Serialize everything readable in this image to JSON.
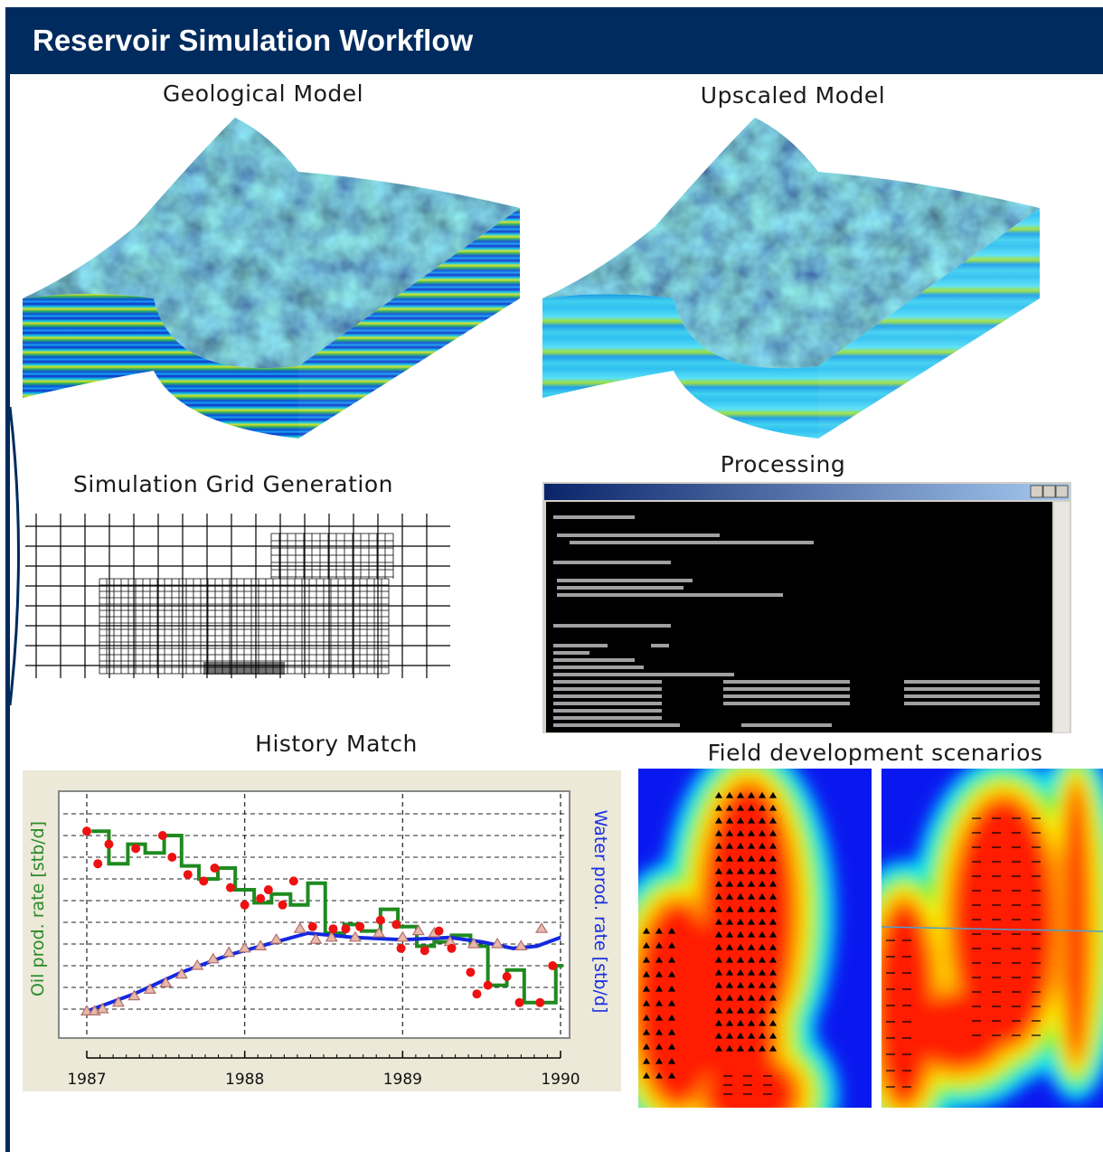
{
  "header": {
    "title": "Reservoir Simulation Workflow"
  },
  "panels": {
    "geological_model": {
      "title": "Geological Model"
    },
    "upscaled_model": {
      "title": "Upscaled Model"
    },
    "grid_generation": {
      "title": "Simulation Grid Generation"
    },
    "processing": {
      "title": "Processing"
    },
    "field_development": {
      "title": "Field development scenarios"
    }
  },
  "history_match": {
    "type": "line",
    "title": "History Match",
    "y_label": "Oil prod. rate [stb/d]",
    "y2_label": "Water prod. rate [stb/d]",
    "xlim": [
      1987,
      1990
    ],
    "xticks": [
      1987,
      1988,
      1989,
      1990
    ],
    "ylim": [
      0,
      11
    ],
    "yticks": [
      1,
      2,
      3,
      4,
      5,
      6,
      7,
      8,
      9,
      10
    ],
    "grid": true,
    "observed_oil": {
      "color": "#ee1111",
      "x": [
        1987.0,
        1987.07,
        1987.14,
        1987.31,
        1987.48,
        1987.54,
        1987.64,
        1987.74,
        1987.81,
        1987.91,
        1988.0,
        1988.1,
        1988.15,
        1988.24,
        1988.31,
        1988.43,
        1988.56,
        1988.64,
        1988.73,
        1988.86,
        1988.96,
        1988.99,
        1989.14,
        1989.23,
        1989.31,
        1989.43,
        1989.47,
        1989.54,
        1989.66,
        1989.74,
        1989.87,
        1989.95
      ],
      "values": [
        9.2,
        7.7,
        8.6,
        8.4,
        9.0,
        8.0,
        7.2,
        6.9,
        7.5,
        6.6,
        5.8,
        6.1,
        6.5,
        5.8,
        6.9,
        4.8,
        4.7,
        4.7,
        4.8,
        5.1,
        4.9,
        3.8,
        3.7,
        4.6,
        3.8,
        2.7,
        1.7,
        2.1,
        2.5,
        1.3,
        1.3,
        3.0
      ]
    },
    "simulated_oil": {
      "color": "#1f8a1f",
      "x": [
        1987.03,
        1987.14,
        1987.26,
        1987.37,
        1987.49,
        1987.6,
        1987.71,
        1987.83,
        1987.94,
        1988.06,
        1988.17,
        1988.29,
        1988.4,
        1988.51,
        1988.63,
        1988.74,
        1988.86,
        1988.97,
        1989.09,
        1989.2,
        1989.31,
        1989.43,
        1989.54,
        1989.66,
        1989.77,
        1989.89,
        1989.97
      ],
      "values": [
        9.2,
        7.7,
        8.6,
        8.2,
        9.0,
        7.6,
        7.0,
        7.5,
        6.5,
        5.9,
        6.3,
        5.8,
        6.8,
        4.5,
        4.9,
        4.6,
        5.6,
        4.8,
        3.9,
        4.1,
        4.4,
        3.9,
        2.1,
        2.8,
        1.3,
        1.3,
        3.0
      ]
    },
    "observed_water": {
      "color": "#b07070",
      "x": [
        1987.0,
        1987.05,
        1987.1,
        1987.2,
        1987.3,
        1987.4,
        1987.5,
        1987.6,
        1987.7,
        1987.8,
        1987.9,
        1988.0,
        1988.1,
        1988.2,
        1988.35,
        1988.45,
        1988.55,
        1988.7,
        1988.85,
        1989.0,
        1989.1,
        1989.2,
        1989.3,
        1989.45,
        1989.6,
        1989.75,
        1989.88
      ],
      "values": [
        0.9,
        0.9,
        1.0,
        1.3,
        1.6,
        1.9,
        2.2,
        2.6,
        3.0,
        3.3,
        3.6,
        3.8,
        3.9,
        4.2,
        4.7,
        4.2,
        4.3,
        4.3,
        4.5,
        4.3,
        4.6,
        4.5,
        4.1,
        4.0,
        4.0,
        3.9,
        4.7
      ]
    },
    "simulated_water": {
      "color": "#1428e0",
      "x": [
        1987.0,
        1987.3,
        1987.6,
        1987.9,
        1988.2,
        1988.4,
        1988.7,
        1989.0,
        1989.3,
        1989.5,
        1989.7,
        1989.85,
        1990.0
      ],
      "values": [
        0.9,
        1.7,
        2.7,
        3.5,
        4.1,
        4.5,
        4.3,
        4.2,
        4.3,
        4.1,
        3.8,
        3.9,
        4.3
      ]
    }
  }
}
